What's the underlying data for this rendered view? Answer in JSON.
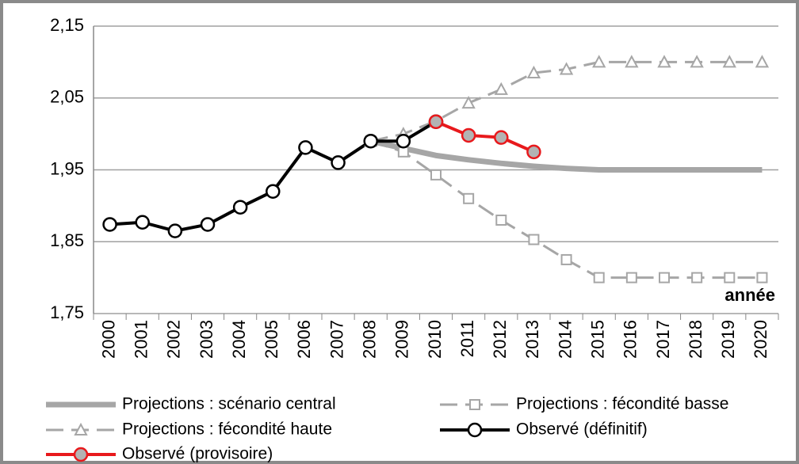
{
  "chart_data": {
    "type": "line",
    "categories": [
      "2000",
      "2001",
      "2002",
      "2003",
      "2004",
      "2005",
      "2006",
      "2007",
      "2008",
      "2009",
      "2010",
      "2011",
      "2012",
      "2013",
      "2014",
      "2015",
      "2016",
      "2017",
      "2018",
      "2019",
      "2020"
    ],
    "ylim": [
      1.75,
      2.15
    ],
    "yticks": [
      {
        "value": 1.75,
        "label": "1,75"
      },
      {
        "value": 1.85,
        "label": "1,85"
      },
      {
        "value": 1.95,
        "label": "1,95"
      },
      {
        "value": 2.05,
        "label": "2,05"
      },
      {
        "value": 2.15,
        "label": "2,15"
      }
    ],
    "grid": true,
    "x_label": "année",
    "legend": "bottom",
    "series": [
      {
        "name": "Projections : scénario central",
        "color": "#a6a6a6",
        "width": 7,
        "dash": false,
        "marker": null,
        "values": [
          null,
          null,
          null,
          null,
          null,
          null,
          null,
          null,
          1.99,
          1.98,
          1.97,
          1.964,
          1.959,
          1.955,
          1.952,
          1.95,
          1.95,
          1.95,
          1.95,
          1.95,
          1.95
        ]
      },
      {
        "name": "Projections : fécondité basse",
        "color": "#a6a6a6",
        "width": 3,
        "dash": true,
        "marker": "square",
        "values": [
          null,
          null,
          null,
          null,
          null,
          null,
          null,
          null,
          1.99,
          1.975,
          1.943,
          1.91,
          1.88,
          1.853,
          1.825,
          1.8,
          1.8,
          1.8,
          1.8,
          1.8,
          1.8
        ]
      },
      {
        "name": "Projections : fécondité haute",
        "color": "#a6a6a6",
        "width": 3,
        "dash": true,
        "marker": "triangle",
        "values": [
          null,
          null,
          null,
          null,
          null,
          null,
          null,
          null,
          1.99,
          2.0,
          2.018,
          2.043,
          2.062,
          2.085,
          2.09,
          2.1,
          2.1,
          2.1,
          2.1,
          2.1,
          2.1
        ]
      },
      {
        "name": "Observé (définitif)",
        "color": "#000000",
        "width": 4,
        "dash": false,
        "marker": "circle",
        "marker_fill": "#ffffff",
        "values": [
          1.874,
          1.877,
          1.865,
          1.874,
          1.898,
          1.92,
          1.981,
          1.96,
          1.99,
          1.99,
          2.017,
          null,
          null,
          null,
          null,
          null,
          null,
          null,
          null,
          null,
          null
        ]
      },
      {
        "name": "Observé (provisoire)",
        "color": "#e8191c",
        "width": 4,
        "dash": false,
        "marker": "circle",
        "marker_fill": "#b3b3b3",
        "values": [
          null,
          null,
          null,
          null,
          null,
          null,
          null,
          null,
          null,
          null,
          2.017,
          1.998,
          1.995,
          1.975,
          null,
          null,
          null,
          null,
          null,
          null,
          null
        ]
      }
    ]
  }
}
